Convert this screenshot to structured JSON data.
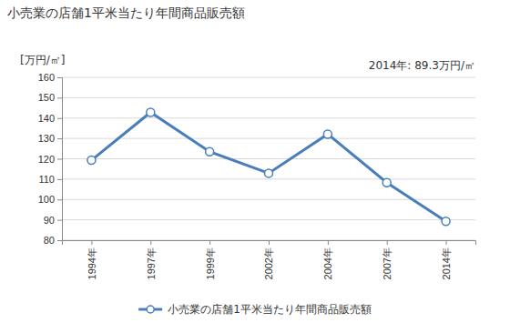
{
  "chart_data": {
    "type": "line",
    "title": "小売業の店舗1平米当たり年間商品販売額",
    "ylabel": "[万円/㎡]",
    "annotation": "2014年: 89.3万円/㎡",
    "categories": [
      "1994年",
      "1997年",
      "1999年",
      "2002年",
      "2004年",
      "2007年",
      "2014年"
    ],
    "series": [
      {
        "name": "小売業の店舗1平米当たり年間商品販売額",
        "color": "#4a7ebb",
        "marker": "circle",
        "values": [
          119.3,
          142.8,
          123.5,
          112.9,
          132.1,
          108.3,
          89.3
        ]
      }
    ],
    "ylim": [
      80,
      160
    ],
    "yticks": [
      80,
      90,
      100,
      110,
      120,
      130,
      140,
      150,
      160
    ],
    "grid": true,
    "legend": "bottom"
  }
}
